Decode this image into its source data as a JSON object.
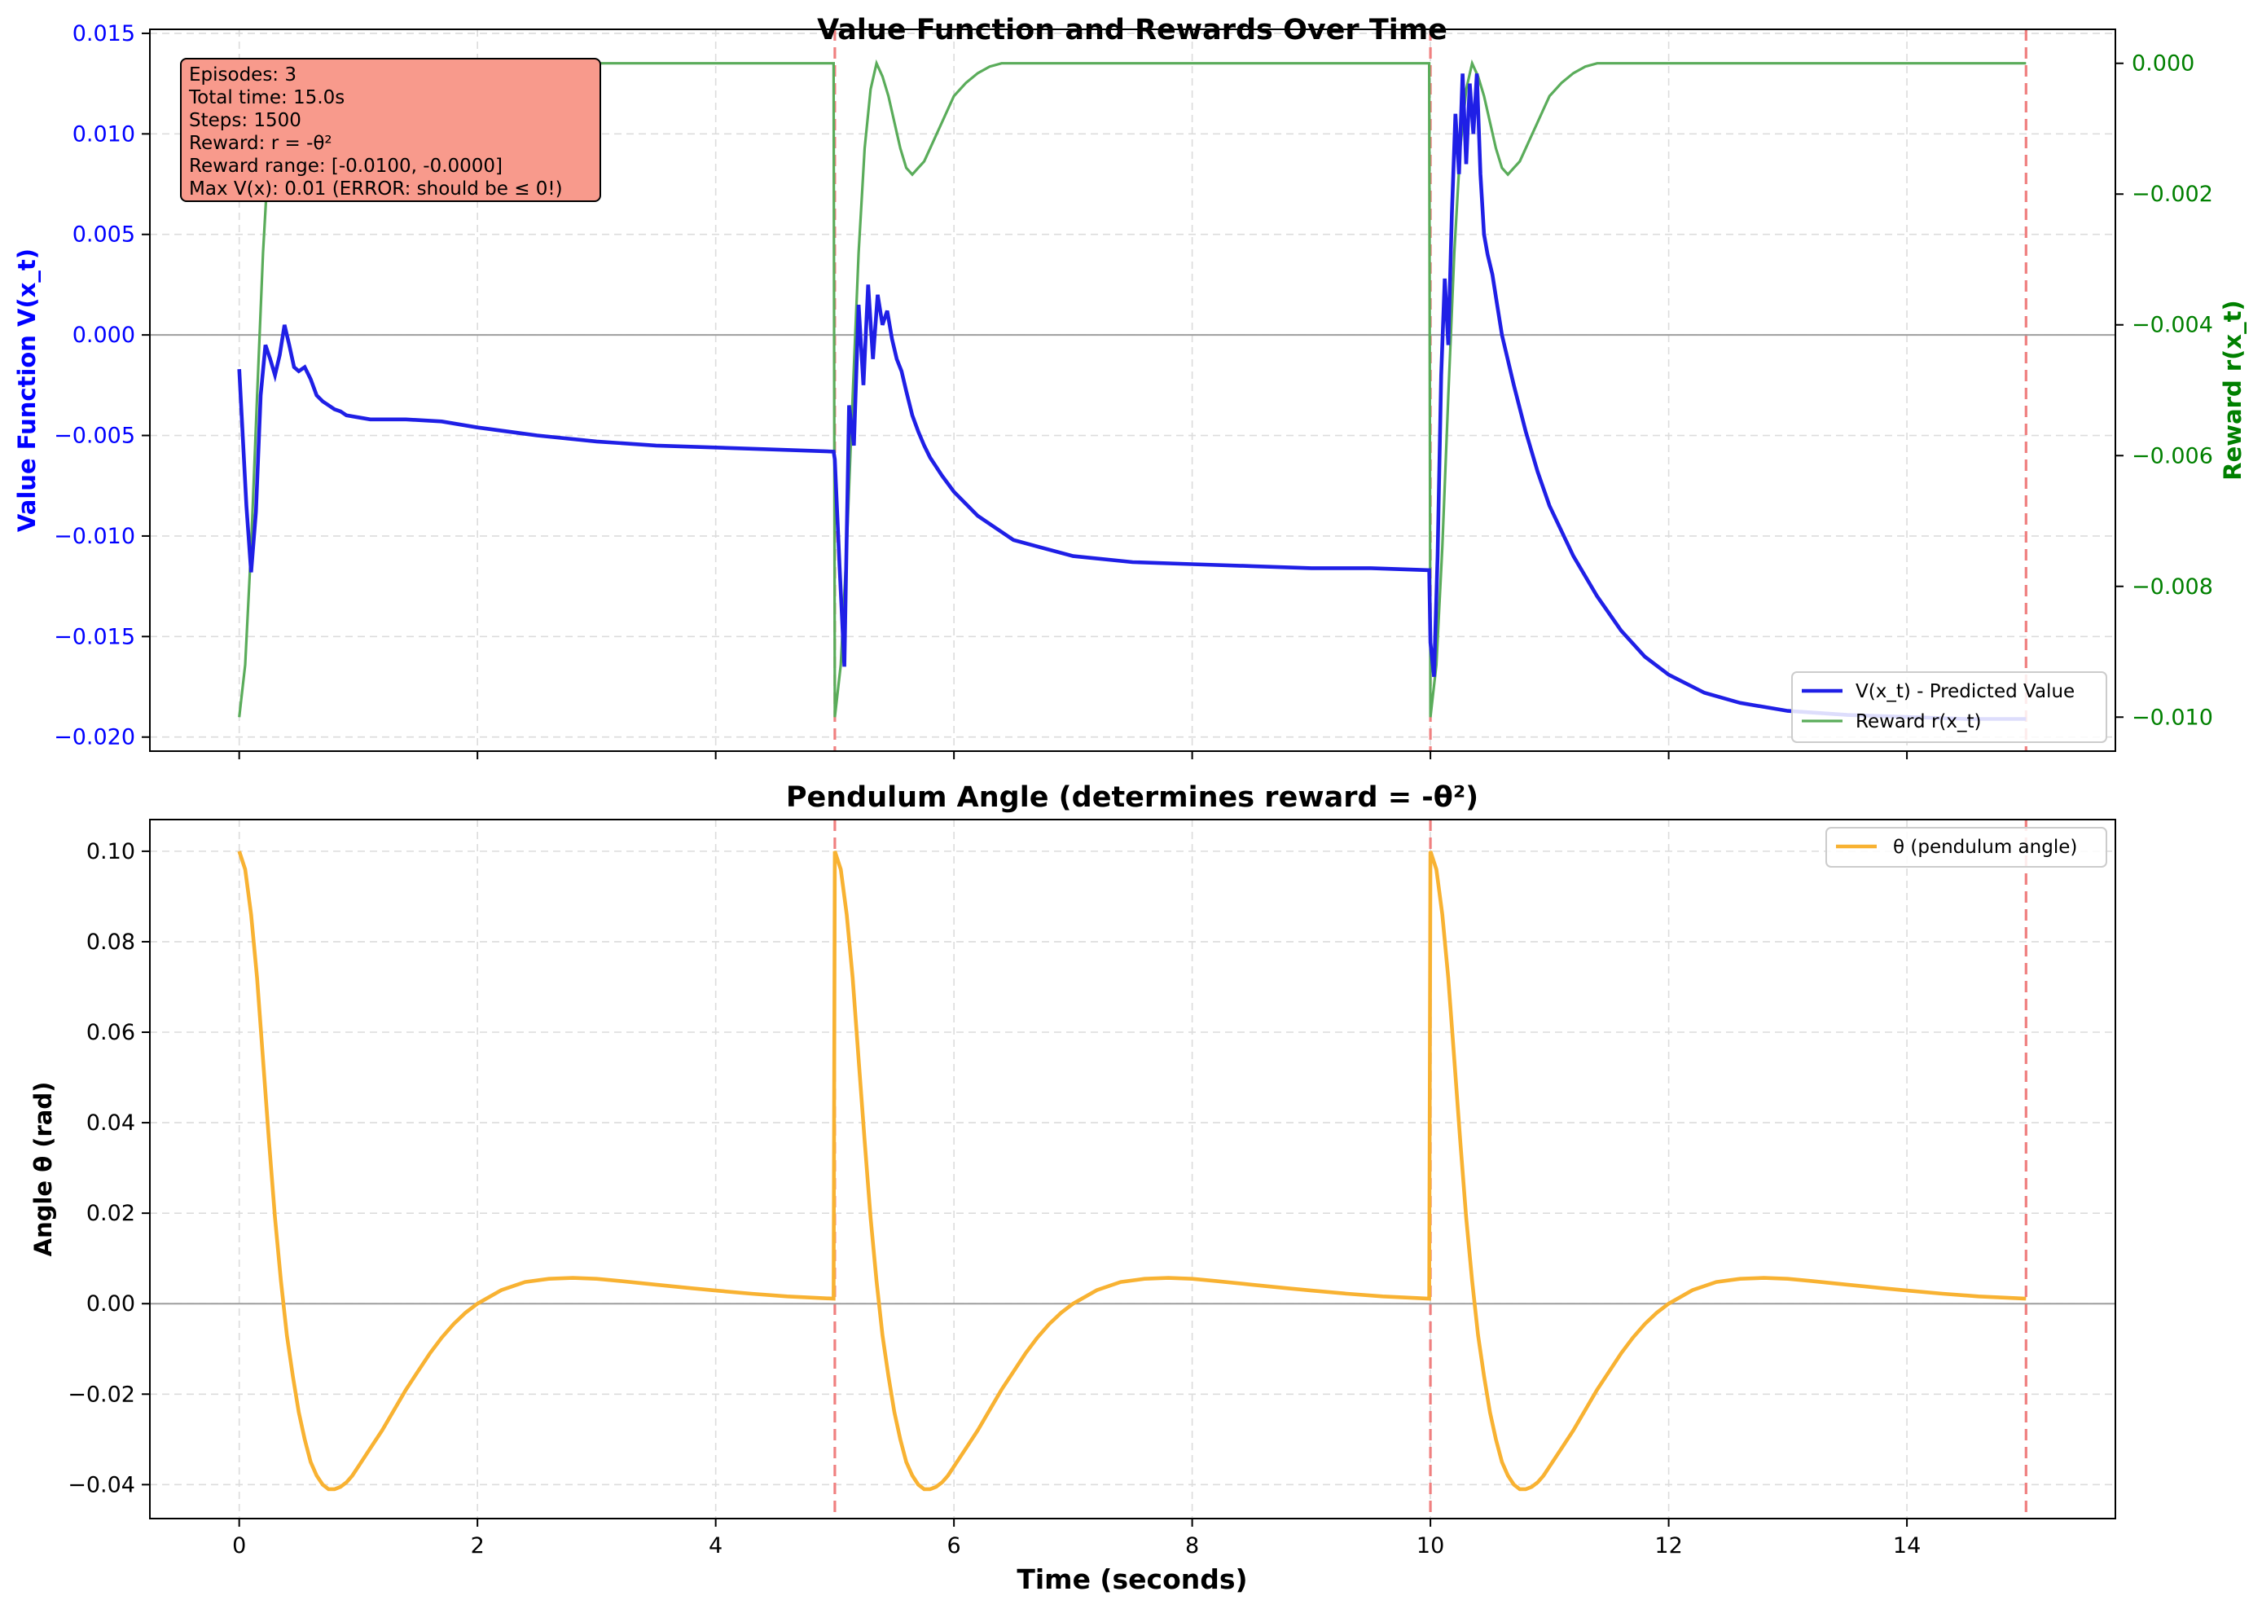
{
  "colors": {
    "value": "#1f1fe6",
    "reward": "#5aac5a",
    "theta": "#f8b232",
    "episode_line": "#f08080",
    "zero_line": "#9e9e9e",
    "grid": "#dcdcdc",
    "info_box": "#f89a8c",
    "left_axis_text": "#0000ff",
    "right_axis_text": "#008000"
  },
  "chart_data": [
    {
      "type": "line",
      "title": "Value Function and Rewards Over Time",
      "xlabel": "",
      "ylabel": "Value Function V(x_t)",
      "y2label": "Reward r(x_t)",
      "xlim": [
        -0.75,
        15.75
      ],
      "ylim": [
        -0.0207,
        0.0152
      ],
      "y2lim": [
        -0.01052,
        0.00052
      ],
      "x_ticks": [
        0,
        2,
        4,
        6,
        8,
        10,
        12,
        14
      ],
      "y_ticks": [
        0.015,
        0.01,
        0.005,
        0.0,
        -0.005,
        -0.01,
        -0.015,
        -0.02
      ],
      "y_tick_labels": [
        "0.015",
        "0.010",
        "0.005",
        "0.000",
        "−0.005",
        "−0.010",
        "−0.015",
        "−0.020"
      ],
      "y2_ticks": [
        0.0,
        -0.002,
        -0.004,
        -0.006,
        -0.008,
        -0.01
      ],
      "y2_tick_labels": [
        "0.000",
        "−0.002",
        "−0.004",
        "−0.006",
        "−0.008",
        "−0.010"
      ],
      "episode_boundaries": [
        5,
        10,
        15
      ],
      "grid": true,
      "legend_position": "lower-right",
      "annotation": {
        "lines": [
          "Episodes: 3",
          "Total time: 15.0s",
          "Steps: 1500",
          "Reward: r = -θ²",
          "Reward range: [-0.0100, -0.0000]",
          "Max V(x): 0.01 (ERROR: should be ≤ 0!)"
        ]
      },
      "series": [
        {
          "name": "V(x_t) - Predicted Value",
          "axis": "left",
          "x": [
            0.0,
            0.06,
            0.1,
            0.14,
            0.18,
            0.22,
            0.26,
            0.3,
            0.34,
            0.38,
            0.42,
            0.46,
            0.5,
            0.55,
            0.6,
            0.65,
            0.7,
            0.75,
            0.8,
            0.85,
            0.9,
            1.0,
            1.1,
            1.2,
            1.4,
            1.7,
            2.0,
            2.5,
            3.0,
            3.5,
            4.0,
            4.5,
            4.99,
            5.0,
            5.04,
            5.08,
            5.12,
            5.16,
            5.2,
            5.24,
            5.28,
            5.32,
            5.36,
            5.4,
            5.44,
            5.48,
            5.52,
            5.56,
            5.6,
            5.65,
            5.7,
            5.75,
            5.8,
            5.9,
            6.0,
            6.2,
            6.5,
            7.0,
            7.5,
            8.0,
            8.5,
            9.0,
            9.5,
            9.99,
            10.0,
            10.03,
            10.06,
            10.09,
            10.12,
            10.15,
            10.18,
            10.21,
            10.24,
            10.27,
            10.3,
            10.33,
            10.36,
            10.39,
            10.42,
            10.45,
            10.48,
            10.52,
            10.56,
            10.6,
            10.7,
            10.8,
            10.9,
            11.0,
            11.2,
            11.4,
            11.6,
            11.8,
            12.0,
            12.3,
            12.6,
            13.0,
            13.5,
            14.0,
            14.5,
            15.0
          ],
          "y": [
            -0.0017,
            -0.0085,
            -0.0118,
            -0.0088,
            -0.003,
            -0.0005,
            -0.0012,
            -0.002,
            -0.001,
            0.0005,
            -0.0005,
            -0.0016,
            -0.0018,
            -0.0016,
            -0.0022,
            -0.003,
            -0.0033,
            -0.0035,
            -0.0037,
            -0.0038,
            -0.004,
            -0.0041,
            -0.0042,
            -0.0042,
            -0.0042,
            -0.0043,
            -0.0046,
            -0.005,
            -0.0053,
            -0.0055,
            -0.0056,
            -0.0057,
            -0.0058,
            -0.0062,
            -0.0115,
            -0.0165,
            -0.0035,
            -0.0055,
            0.0015,
            -0.0025,
            0.0025,
            -0.0012,
            0.002,
            0.0005,
            0.0012,
            -0.0002,
            -0.0012,
            -0.0018,
            -0.0028,
            -0.004,
            -0.0048,
            -0.0055,
            -0.0061,
            -0.007,
            -0.0078,
            -0.009,
            -0.0102,
            -0.011,
            -0.0113,
            -0.0114,
            -0.0115,
            -0.0116,
            -0.0116,
            -0.0117,
            -0.0153,
            -0.017,
            -0.011,
            -0.002,
            0.0028,
            -0.0005,
            0.006,
            0.011,
            0.008,
            0.013,
            0.0085,
            0.0125,
            0.01,
            0.013,
            0.008,
            0.005,
            0.004,
            0.003,
            0.0015,
            0.0,
            -0.0025,
            -0.0048,
            -0.0068,
            -0.0085,
            -0.011,
            -0.013,
            -0.0147,
            -0.016,
            -0.0169,
            -0.0178,
            -0.0183,
            -0.0187,
            -0.0189,
            -0.019,
            -0.0191,
            -0.0191
          ]
        },
        {
          "name": "Reward r(x_t)",
          "axis": "right",
          "x": [
            0.0,
            0.05,
            0.1,
            0.15,
            0.2,
            0.25,
            0.3,
            0.35,
            0.4,
            0.45,
            0.5,
            0.55,
            0.6,
            0.65,
            0.7,
            0.75,
            0.8,
            0.85,
            0.9,
            0.95,
            1.0,
            1.1,
            1.2,
            1.3,
            1.4,
            1.5,
            1.6,
            1.7,
            1.8,
            1.9,
            2.0,
            2.2,
            2.5,
            3.0,
            3.5,
            4.0,
            4.5,
            4.99,
            5.0,
            5.05,
            5.1,
            5.15,
            5.2,
            5.25,
            5.3,
            5.35,
            5.4,
            5.45,
            5.5,
            5.55,
            5.6,
            5.65,
            5.7,
            5.75,
            5.8,
            5.85,
            5.9,
            5.95,
            6.0,
            6.1,
            6.2,
            6.3,
            6.4,
            6.5,
            6.6,
            6.7,
            6.8,
            6.9,
            7.0,
            7.2,
            7.5,
            8.0,
            8.5,
            9.0,
            9.5,
            9.99,
            10.0,
            10.05,
            10.1,
            10.15,
            10.2,
            10.25,
            10.3,
            10.35,
            10.4,
            10.45,
            10.5,
            10.55,
            10.6,
            10.65,
            10.7,
            10.75,
            10.8,
            10.85,
            10.9,
            10.95,
            11.0,
            11.1,
            11.2,
            11.3,
            11.4,
            11.5,
            11.6,
            11.7,
            11.8,
            11.9,
            12.0,
            12.2,
            12.5,
            13.0,
            13.5,
            14.0,
            14.5,
            15.0
          ],
          "y": [
            -0.01,
            -0.0092,
            -0.0074,
            -0.0051,
            -0.0029,
            -0.0013,
            -0.0004,
            -0.0,
            -0.0002,
            -0.0005,
            -0.0009,
            -0.0013,
            -0.0016,
            -0.0017,
            -0.0016,
            -0.0015,
            -0.0013,
            -0.0011,
            -0.0009,
            -0.0007,
            -0.0005,
            -0.0003,
            -0.00015,
            -5e-05,
            0.0,
            0.0,
            0.0,
            0.0,
            0.0,
            0.0,
            0.0,
            0.0,
            0.0,
            0.0,
            0.0,
            0.0,
            0.0,
            0.0,
            -0.01,
            -0.0092,
            -0.0074,
            -0.0051,
            -0.0029,
            -0.0013,
            -0.0004,
            -0.0,
            -0.0002,
            -0.0005,
            -0.0009,
            -0.0013,
            -0.0016,
            -0.0017,
            -0.0016,
            -0.0015,
            -0.0013,
            -0.0011,
            -0.0009,
            -0.0007,
            -0.0005,
            -0.0003,
            -0.00015,
            -5e-05,
            0.0,
            0.0,
            0.0,
            0.0,
            0.0,
            0.0,
            0.0,
            0.0,
            0.0,
            0.0,
            0.0,
            0.0,
            0.0,
            0.0,
            -0.01,
            -0.0092,
            -0.0074,
            -0.0051,
            -0.0029,
            -0.0013,
            -0.0004,
            -0.0,
            -0.0002,
            -0.0005,
            -0.0009,
            -0.0013,
            -0.0016,
            -0.0017,
            -0.0016,
            -0.0015,
            -0.0013,
            -0.0011,
            -0.0009,
            -0.0007,
            -0.0005,
            -0.0003,
            -0.00015,
            -5e-05,
            0.0,
            0.0,
            0.0,
            0.0,
            0.0,
            0.0,
            0.0,
            0.0,
            0.0,
            0.0,
            0.0,
            0.0,
            0.0,
            0.0
          ]
        }
      ]
    },
    {
      "type": "line",
      "title": "Pendulum Angle (determines reward = -θ²)",
      "xlabel": "Time (seconds)",
      "ylabel": "Angle θ (rad)",
      "xlim": [
        -0.75,
        15.75
      ],
      "ylim": [
        -0.0475,
        0.107
      ],
      "x_ticks": [
        0,
        2,
        4,
        6,
        8,
        10,
        12,
        14
      ],
      "x_tick_labels": [
        "0",
        "2",
        "4",
        "6",
        "8",
        "10",
        "12",
        "14"
      ],
      "y_ticks": [
        0.1,
        0.08,
        0.06,
        0.04,
        0.02,
        0.0,
        -0.02,
        -0.04
      ],
      "y_tick_labels": [
        "0.10",
        "0.08",
        "0.06",
        "0.04",
        "0.02",
        "0.00",
        "−0.02",
        "−0.04"
      ],
      "episode_boundaries": [
        5,
        10,
        15
      ],
      "grid": true,
      "legend_position": "upper-right",
      "series": [
        {
          "name": "θ (pendulum angle)",
          "x": [
            0.0,
            0.05,
            0.1,
            0.15,
            0.2,
            0.25,
            0.3,
            0.35,
            0.4,
            0.45,
            0.5,
            0.55,
            0.6,
            0.65,
            0.7,
            0.75,
            0.8,
            0.85,
            0.9,
            0.95,
            1.0,
            1.1,
            1.2,
            1.3,
            1.4,
            1.5,
            1.6,
            1.7,
            1.8,
            1.9,
            2.0,
            2.2,
            2.4,
            2.6,
            2.8,
            3.0,
            3.2,
            3.5,
            3.8,
            4.0,
            4.3,
            4.6,
            4.99,
            5.0,
            5.05,
            5.1,
            5.15,
            5.2,
            5.25,
            5.3,
            5.35,
            5.4,
            5.45,
            5.5,
            5.55,
            5.6,
            5.65,
            5.7,
            5.75,
            5.8,
            5.85,
            5.9,
            5.95,
            6.0,
            6.1,
            6.2,
            6.3,
            6.4,
            6.5,
            6.6,
            6.7,
            6.8,
            6.9,
            7.0,
            7.2,
            7.4,
            7.6,
            7.8,
            8.0,
            8.2,
            8.5,
            8.8,
            9.0,
            9.3,
            9.6,
            9.99,
            10.0,
            10.05,
            10.1,
            10.15,
            10.2,
            10.25,
            10.3,
            10.35,
            10.4,
            10.45,
            10.5,
            10.55,
            10.6,
            10.65,
            10.7,
            10.75,
            10.8,
            10.85,
            10.9,
            10.95,
            11.0,
            11.1,
            11.2,
            11.3,
            11.4,
            11.5,
            11.6,
            11.7,
            11.8,
            11.9,
            12.0,
            12.2,
            12.4,
            12.6,
            12.8,
            13.0,
            13.2,
            13.5,
            13.8,
            14.0,
            14.3,
            14.6,
            15.0
          ],
          "y": [
            0.1,
            0.096,
            0.086,
            0.072,
            0.054,
            0.036,
            0.019,
            0.005,
            -0.007,
            -0.016,
            -0.024,
            -0.03,
            -0.035,
            -0.038,
            -0.04,
            -0.041,
            -0.041,
            -0.0405,
            -0.0395,
            -0.038,
            -0.036,
            -0.032,
            -0.028,
            -0.0235,
            -0.019,
            -0.015,
            -0.011,
            -0.0075,
            -0.0045,
            -0.002,
            0.0,
            0.003,
            0.0048,
            0.0055,
            0.0057,
            0.0055,
            0.005,
            0.0042,
            0.0034,
            0.0029,
            0.0022,
            0.0016,
            0.0011,
            0.1,
            0.096,
            0.086,
            0.072,
            0.054,
            0.036,
            0.019,
            0.005,
            -0.007,
            -0.016,
            -0.024,
            -0.03,
            -0.035,
            -0.038,
            -0.04,
            -0.041,
            -0.041,
            -0.0405,
            -0.0395,
            -0.038,
            -0.036,
            -0.032,
            -0.028,
            -0.0235,
            -0.019,
            -0.015,
            -0.011,
            -0.0075,
            -0.0045,
            -0.002,
            0.0,
            0.003,
            0.0048,
            0.0055,
            0.0057,
            0.0055,
            0.005,
            0.0042,
            0.0034,
            0.0029,
            0.0022,
            0.0016,
            0.0011,
            0.1,
            0.096,
            0.086,
            0.072,
            0.054,
            0.036,
            0.019,
            0.005,
            -0.007,
            -0.016,
            -0.024,
            -0.03,
            -0.035,
            -0.038,
            -0.04,
            -0.041,
            -0.041,
            -0.0405,
            -0.0395,
            -0.038,
            -0.036,
            -0.032,
            -0.028,
            -0.0235,
            -0.019,
            -0.015,
            -0.011,
            -0.0075,
            -0.0045,
            -0.002,
            0.0,
            0.003,
            0.0048,
            0.0055,
            0.0057,
            0.0055,
            0.005,
            0.0042,
            0.0034,
            0.0029,
            0.0022,
            0.0016,
            0.0011
          ]
        }
      ]
    }
  ]
}
